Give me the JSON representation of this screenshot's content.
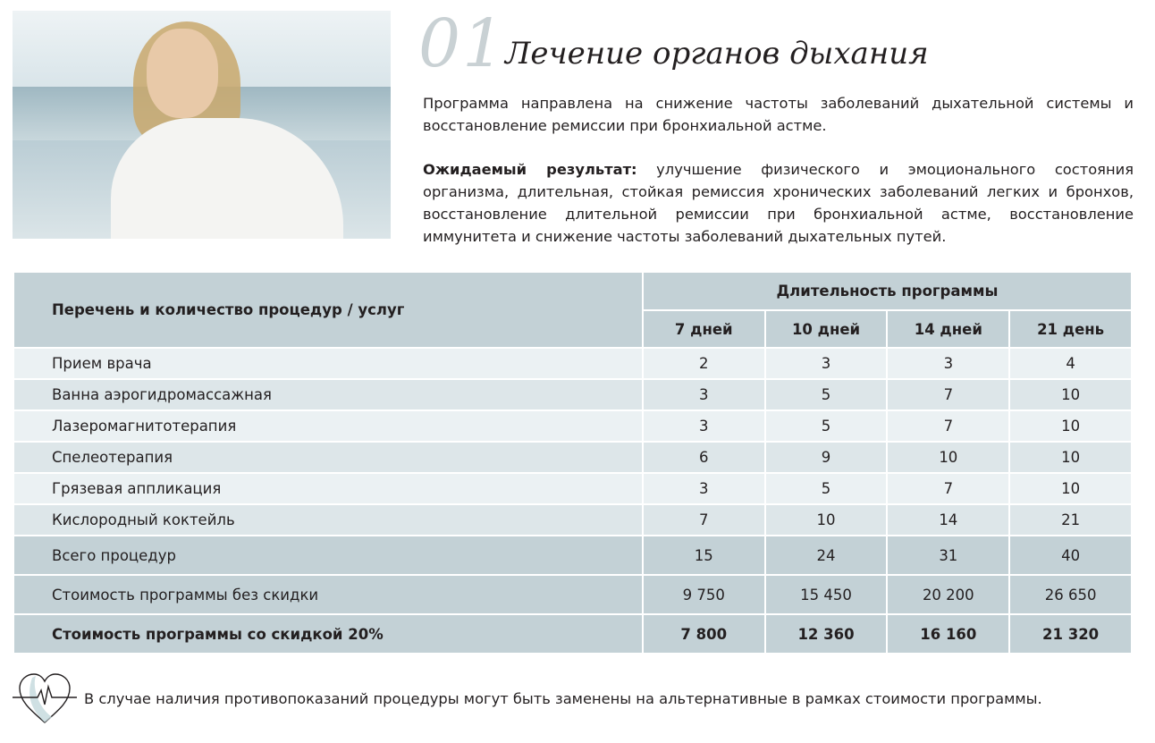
{
  "header": {
    "number": "01",
    "title": "Лечение органов дыхания"
  },
  "description": "Программа направлена на снижение частоты заболеваний дыхательной системы и восстановление ремиссии при бронхиальной астме.",
  "result": {
    "label": "Ожидаемый результат:",
    "text": " улучшение физического и эмоционального состояния организма, длительная, стойкая ремиссия хронических заболеваний легких и бронхов, восстановление длительной ремиссии при бронхиальной астме, восстановление иммунитета и снижение частоты заболеваний дыхательных путей."
  },
  "table": {
    "col_header": "Перечень и количество процедур / услуг",
    "duration_header": "Длительность программы",
    "durations": [
      "7 дней",
      "10 дней",
      "14 дней",
      "21 день"
    ],
    "rows": [
      {
        "name": "Прием врача",
        "values": [
          "2",
          "3",
          "3",
          "4"
        ]
      },
      {
        "name": "Ванна аэрогидромассажная",
        "values": [
          "3",
          "5",
          "7",
          "10"
        ]
      },
      {
        "name": "Лазеромагнитотерапия",
        "values": [
          "3",
          "5",
          "7",
          "10"
        ]
      },
      {
        "name": "Спелеотерапия",
        "values": [
          "6",
          "9",
          "10",
          "10"
        ]
      },
      {
        "name": "Грязевая аппликация",
        "values": [
          "3",
          "5",
          "7",
          "10"
        ]
      },
      {
        "name": "Кислородный коктейль",
        "values": [
          "7",
          "10",
          "14",
          "21"
        ]
      }
    ],
    "totals": [
      {
        "name": "Всего процедур",
        "values": [
          "15",
          "24",
          "31",
          "40"
        ]
      },
      {
        "name": "Стоимость программы без скидки",
        "values": [
          "9 750",
          "15 450",
          "20 200",
          "26 650"
        ]
      },
      {
        "name": "Стоимость программы со скидкой 20%",
        "values": [
          "7 800",
          "12 360",
          "16 160",
          "21 320"
        ]
      }
    ]
  },
  "note": {
    "icon": "heart-pulse-icon",
    "text": "В случае наличия противопоказаний процедуры могут быть заменены на альтернативные в рамках стоимости программы."
  },
  "colors": {
    "header_bg": "#c3d1d6",
    "row_light": "#ebf1f3",
    "row_dark": "#dde6e9"
  }
}
